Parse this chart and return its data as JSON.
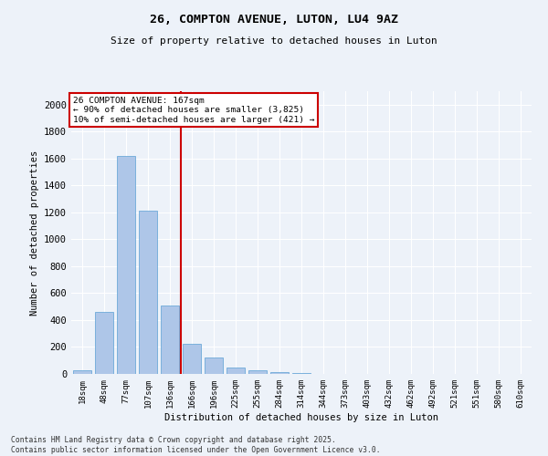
{
  "title1": "26, COMPTON AVENUE, LUTON, LU4 9AZ",
  "title2": "Size of property relative to detached houses in Luton",
  "xlabel": "Distribution of detached houses by size in Luton",
  "ylabel": "Number of detached properties",
  "categories": [
    "18sqm",
    "48sqm",
    "77sqm",
    "107sqm",
    "136sqm",
    "166sqm",
    "196sqm",
    "225sqm",
    "255sqm",
    "284sqm",
    "314sqm",
    "344sqm",
    "373sqm",
    "403sqm",
    "432sqm",
    "462sqm",
    "492sqm",
    "521sqm",
    "551sqm",
    "580sqm",
    "610sqm"
  ],
  "values": [
    30,
    460,
    1620,
    1210,
    510,
    225,
    125,
    50,
    30,
    15,
    5,
    0,
    0,
    0,
    0,
    0,
    0,
    0,
    0,
    0,
    0
  ],
  "bar_color": "#aec6e8",
  "bar_edge_color": "#5a9fd4",
  "vline_x": 4.5,
  "vline_color": "#cc0000",
  "annotation_line1": "26 COMPTON AVENUE: 167sqm",
  "annotation_line2": "← 90% of detached houses are smaller (3,825)",
  "annotation_line3": "10% of semi-detached houses are larger (421) →",
  "annotation_box_color": "#cc0000",
  "ylim": [
    0,
    2100
  ],
  "yticks": [
    0,
    200,
    400,
    600,
    800,
    1000,
    1200,
    1400,
    1600,
    1800,
    2000
  ],
  "background_color": "#edf2f9",
  "grid_color": "#ffffff",
  "footer1": "Contains HM Land Registry data © Crown copyright and database right 2025.",
  "footer2": "Contains public sector information licensed under the Open Government Licence v3.0."
}
